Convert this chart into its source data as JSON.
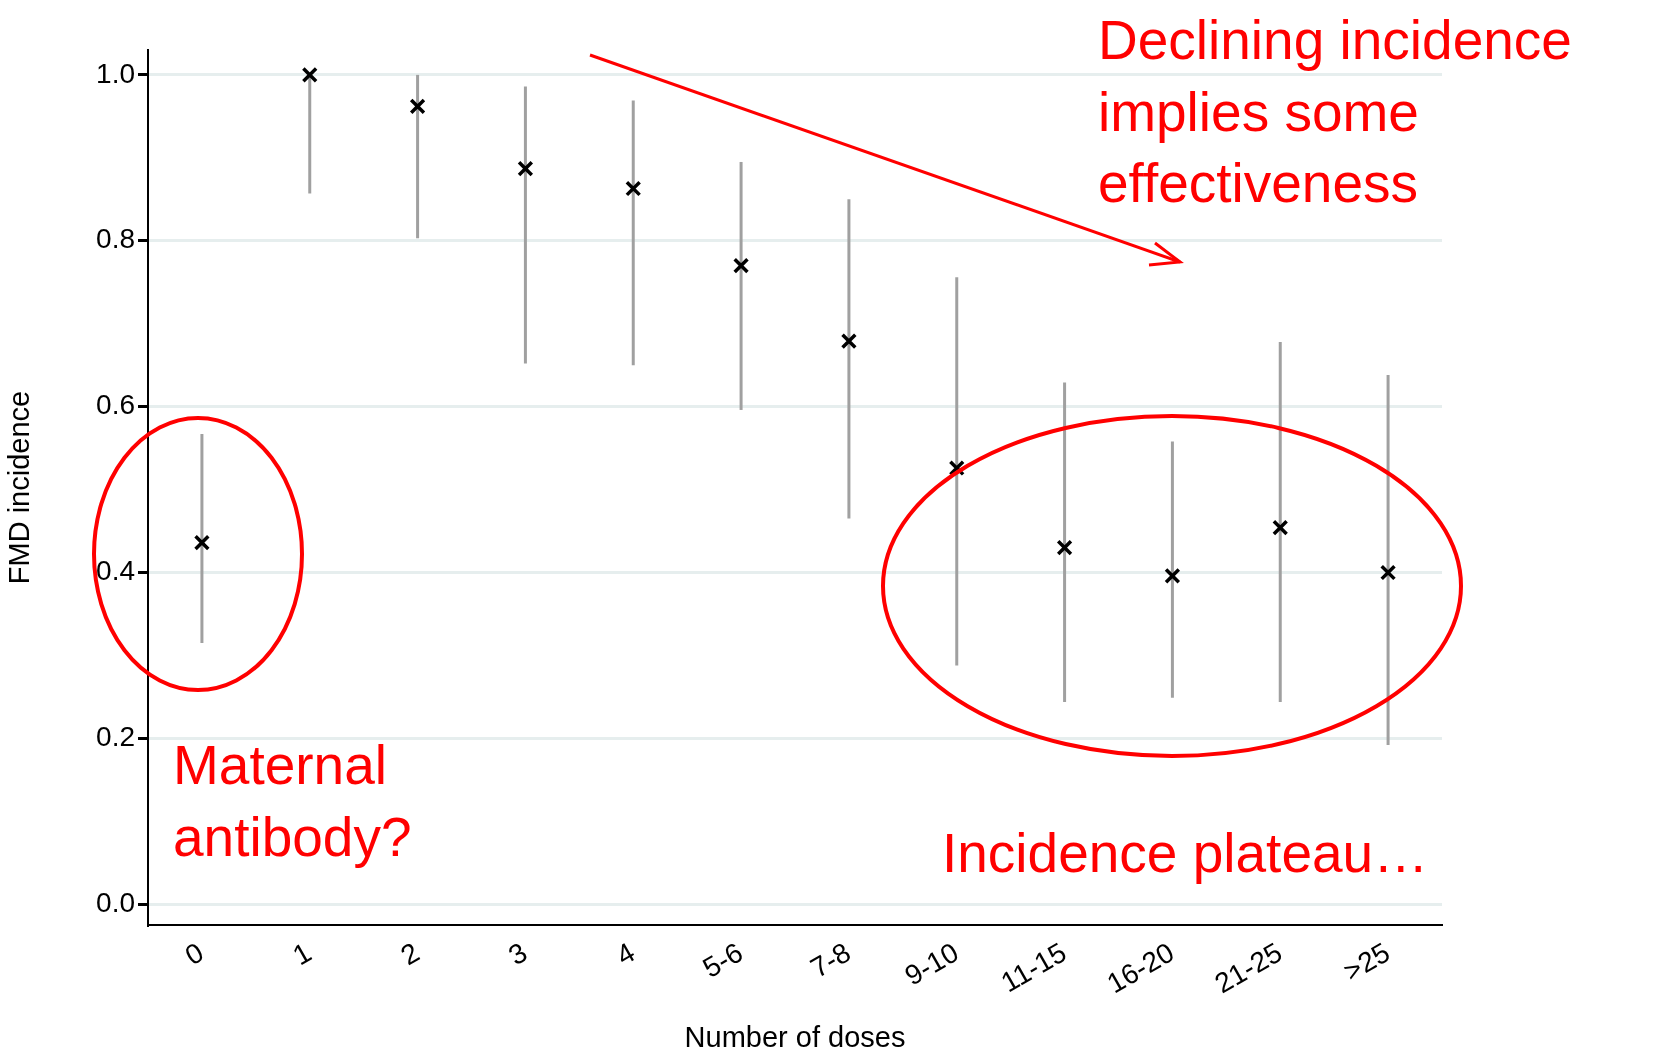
{
  "chart_data": {
    "type": "scatter",
    "xlabel": "Number of doses",
    "ylabel": "FMD incidence",
    "categories": [
      "0",
      "1",
      "2",
      "3",
      "4",
      "5-6",
      "7-8",
      "9-10",
      "11-15",
      "16-20",
      "21-25",
      ">25"
    ],
    "series": [
      {
        "color": "#000000",
        "values": [
          0.436,
          1.0,
          0.962,
          0.887,
          0.863,
          0.77,
          0.679,
          0.526,
          0.43,
          0.396,
          0.454,
          0.4
        ],
        "errors": [
          [
            0.315,
            0.567
          ],
          [
            0.857,
            1.0
          ],
          [
            0.803,
            1.0
          ],
          [
            0.652,
            0.986
          ],
          [
            0.65,
            0.969
          ],
          [
            0.596,
            0.895
          ],
          [
            0.465,
            0.85
          ],
          [
            0.288,
            0.756
          ],
          [
            0.244,
            0.629
          ],
          [
            0.249,
            0.558
          ],
          [
            0.244,
            0.678
          ],
          [
            0.192,
            0.638
          ]
        ]
      }
    ],
    "ylim": [
      -0.025,
      1.03
    ],
    "yticks": [
      {
        "value": 0,
        "label": "0.0"
      },
      0.2,
      0.4,
      0.6,
      0.8,
      {
        "value": 1,
        "label": "1.0"
      }
    ],
    "grid": "y",
    "legend": false,
    "marker": "cross",
    "annotations": [
      "Declining incidence\nimplies some\neffectiveness",
      "Maternal\nantibody?",
      "Incidence plateau…"
    ]
  }
}
